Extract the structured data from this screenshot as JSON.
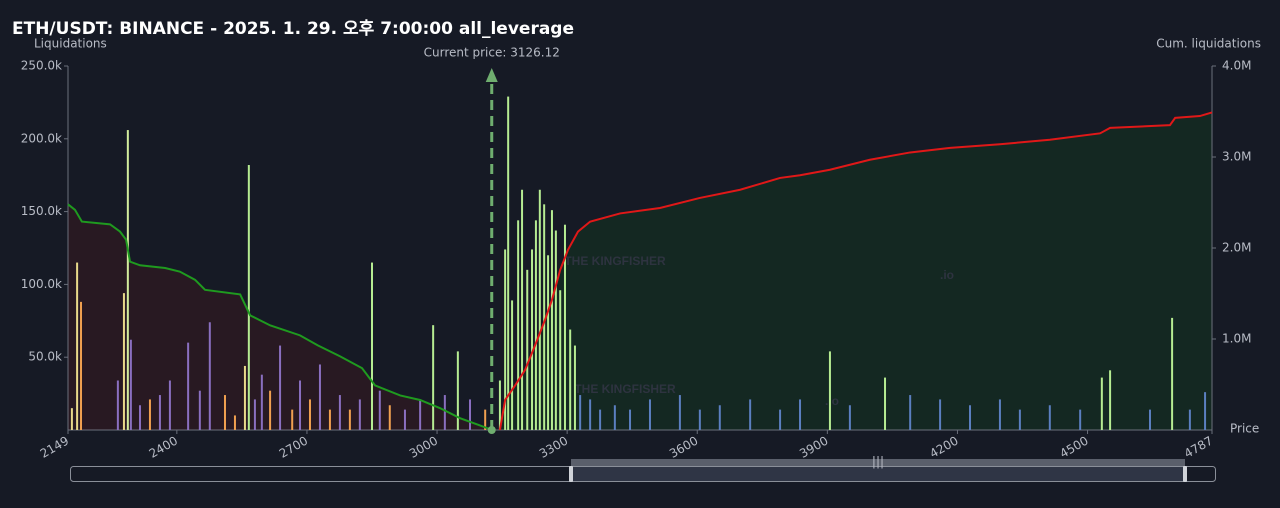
{
  "chart_data": {
    "type": "bar",
    "title": "ETH/USDT: BINANCE - 2025. 1. 29. 오후 7:00:00 all_leverage",
    "y_label": "Liquidations",
    "y2_label": "Cum. liquidations",
    "x_label": "Price",
    "annotation": "Current price: 3126.12",
    "current_price": 3126.12,
    "watermark": "THE KINGFISHER",
    "watermark_suffix": ".io",
    "grid": false,
    "xlim": [
      2149,
      4787
    ],
    "xticks": [
      2149,
      2400,
      2700,
      3000,
      3300,
      3600,
      3900,
      4200,
      4500,
      4787
    ],
    "ylim": [
      0,
      250000
    ],
    "yticks": [
      {
        "value": 50000,
        "label": "50.0k"
      },
      {
        "value": 100000,
        "label": "100.0k"
      },
      {
        "value": 150000,
        "label": "150.0k"
      },
      {
        "value": 200000,
        "label": "200.0k"
      },
      {
        "value": 250000,
        "label": "250.0k"
      }
    ],
    "y2lim": [
      0,
      4000000
    ],
    "y2ticks": [
      {
        "value": 1000000,
        "label": "1.0M"
      },
      {
        "value": 2000000,
        "label": "2.0M"
      },
      {
        "value": 3000000,
        "label": "3.0M"
      },
      {
        "value": 4000000,
        "label": "4.0M"
      }
    ],
    "bars": {
      "x": [
        2158,
        2170,
        2179,
        2264,
        2278,
        2287,
        2294,
        2315,
        2338,
        2361,
        2384,
        2426,
        2453,
        2476,
        2511,
        2534,
        2557,
        2566,
        2580,
        2596,
        2615,
        2638,
        2666,
        2684,
        2707,
        2730,
        2753,
        2776,
        2799,
        2822,
        2850,
        2868,
        2891,
        2926,
        2961,
        2991,
        3018,
        3048,
        3076,
        3111,
        3145,
        3157,
        3164,
        3173,
        3187,
        3196,
        3208,
        3219,
        3228,
        3237,
        3247,
        3256,
        3265,
        3274,
        3284,
        3295,
        3307,
        3318,
        3330,
        3353,
        3376,
        3410,
        3445,
        3491,
        3560,
        3606,
        3652,
        3722,
        3791,
        3837,
        3906,
        3952,
        4033,
        4091,
        4160,
        4229,
        4298,
        4344,
        4413,
        4483,
        4533,
        4552,
        4644,
        4695,
        4736,
        4771
      ],
      "values": [
        15000,
        115000,
        88000,
        34000,
        94000,
        206000,
        62000,
        17000,
        21000,
        24000,
        34000,
        60000,
        27000,
        74000,
        24000,
        10000,
        44000,
        182000,
        21000,
        38000,
        27000,
        58000,
        14000,
        34000,
        21000,
        45000,
        14000,
        24000,
        14000,
        21000,
        115000,
        27000,
        17000,
        14000,
        21000,
        72000,
        24000,
        54000,
        21000,
        14000,
        34000,
        124000,
        229000,
        89000,
        144000,
        165000,
        110000,
        124000,
        144000,
        165000,
        155000,
        120000,
        151000,
        137000,
        96000,
        141000,
        69000,
        58000,
        24000,
        21000,
        14000,
        17000,
        14000,
        21000,
        24000,
        14000,
        17000,
        21000,
        14000,
        21000,
        54000,
        17000,
        36000,
        24000,
        21000,
        17000,
        21000,
        14000,
        17000,
        14000,
        36000,
        41000,
        14000,
        77000,
        14000,
        26000
      ],
      "colors": [
        "#e8d98a",
        "#e8d98a",
        "#f0a050",
        "#8a6fc0",
        "#e8d98a",
        "#d2ec9c",
        "#8a6fc0",
        "#8a6fc0",
        "#f0a050",
        "#8a6fc0",
        "#8a6fc0",
        "#8a6fc0",
        "#8a6fc0",
        "#8a6fc0",
        "#f0a050",
        "#f0a050",
        "#e8d98a",
        "#b6ec92",
        "#8a6fc0",
        "#8a6fc0",
        "#f0a050",
        "#8a6fc0",
        "#f0a050",
        "#8a6fc0",
        "#f0a050",
        "#8a6fc0",
        "#f0a050",
        "#8a6fc0",
        "#f0a050",
        "#8a6fc0",
        "#b6ec92",
        "#8a6fc0",
        "#f0a050",
        "#8a6fc0",
        "#8a6fc0",
        "#b6ec92",
        "#8a6fc0",
        "#b6ec92",
        "#8a6fc0",
        "#f0a050",
        "#b6ec92",
        "#b6ec92",
        "#b6ec92",
        "#b6ec92",
        "#b6ec92",
        "#b6ec92",
        "#b6ec92",
        "#b6ec92",
        "#b6ec92",
        "#b6ec92",
        "#b6ec92",
        "#b6ec92",
        "#b6ec92",
        "#b6ec92",
        "#b6ec92",
        "#b6ec92",
        "#b6ec92",
        "#b6ec92",
        "#5b7fc0",
        "#5b7fc0",
        "#5b7fc0",
        "#5b7fc0",
        "#5b7fc0",
        "#5b7fc0",
        "#5b7fc0",
        "#5b7fc0",
        "#5b7fc0",
        "#5b7fc0",
        "#5b7fc0",
        "#5b7fc0",
        "#b6ec92",
        "#5b7fc0",
        "#b6ec92",
        "#5b7fc0",
        "#5b7fc0",
        "#5b7fc0",
        "#5b7fc0",
        "#5b7fc0",
        "#5b7fc0",
        "#5b7fc0",
        "#b6ec92",
        "#b6ec92",
        "#5b7fc0",
        "#b6ec92",
        "#5b7fc0",
        "#5b7fc0"
      ]
    },
    "series": [
      {
        "type": "line",
        "axis": "y2",
        "color": "#1f9a1f",
        "fill": "#2a1a22",
        "x": [
          2149,
          2165,
          2181,
          2246,
          2269,
          2283,
          2292,
          2315,
          2373,
          2407,
          2442,
          2465,
          2546,
          2569,
          2615,
          2684,
          2725,
          2776,
          2827,
          2857,
          2915,
          2961,
          3007,
          3053,
          3099,
          3127
        ],
        "values": [
          2480000,
          2420000,
          2290000,
          2260000,
          2180000,
          2090000,
          1850000,
          1810000,
          1780000,
          1740000,
          1650000,
          1540000,
          1490000,
          1260000,
          1150000,
          1040000,
          930000,
          810000,
          680000,
          490000,
          380000,
          330000,
          240000,
          130000,
          50000,
          0
        ]
      },
      {
        "type": "line",
        "axis": "y2",
        "color": "#e01818",
        "fill": "#142a22",
        "x": [
          3145,
          3157,
          3180,
          3203,
          3226,
          3249,
          3265,
          3284,
          3302,
          3325,
          3353,
          3422,
          3514,
          3606,
          3699,
          3791,
          3837,
          3906,
          3998,
          4091,
          4183,
          4298,
          4413,
          4529,
          4552,
          4690,
          4702,
          4759,
          4787
        ],
        "values": [
          0,
          330000,
          490000,
          660000,
          930000,
          1210000,
          1430000,
          1760000,
          1980000,
          2180000,
          2290000,
          2380000,
          2440000,
          2550000,
          2640000,
          2770000,
          2800000,
          2860000,
          2970000,
          3050000,
          3100000,
          3140000,
          3190000,
          3260000,
          3320000,
          3350000,
          3430000,
          3450000,
          3490000
        ]
      }
    ]
  }
}
